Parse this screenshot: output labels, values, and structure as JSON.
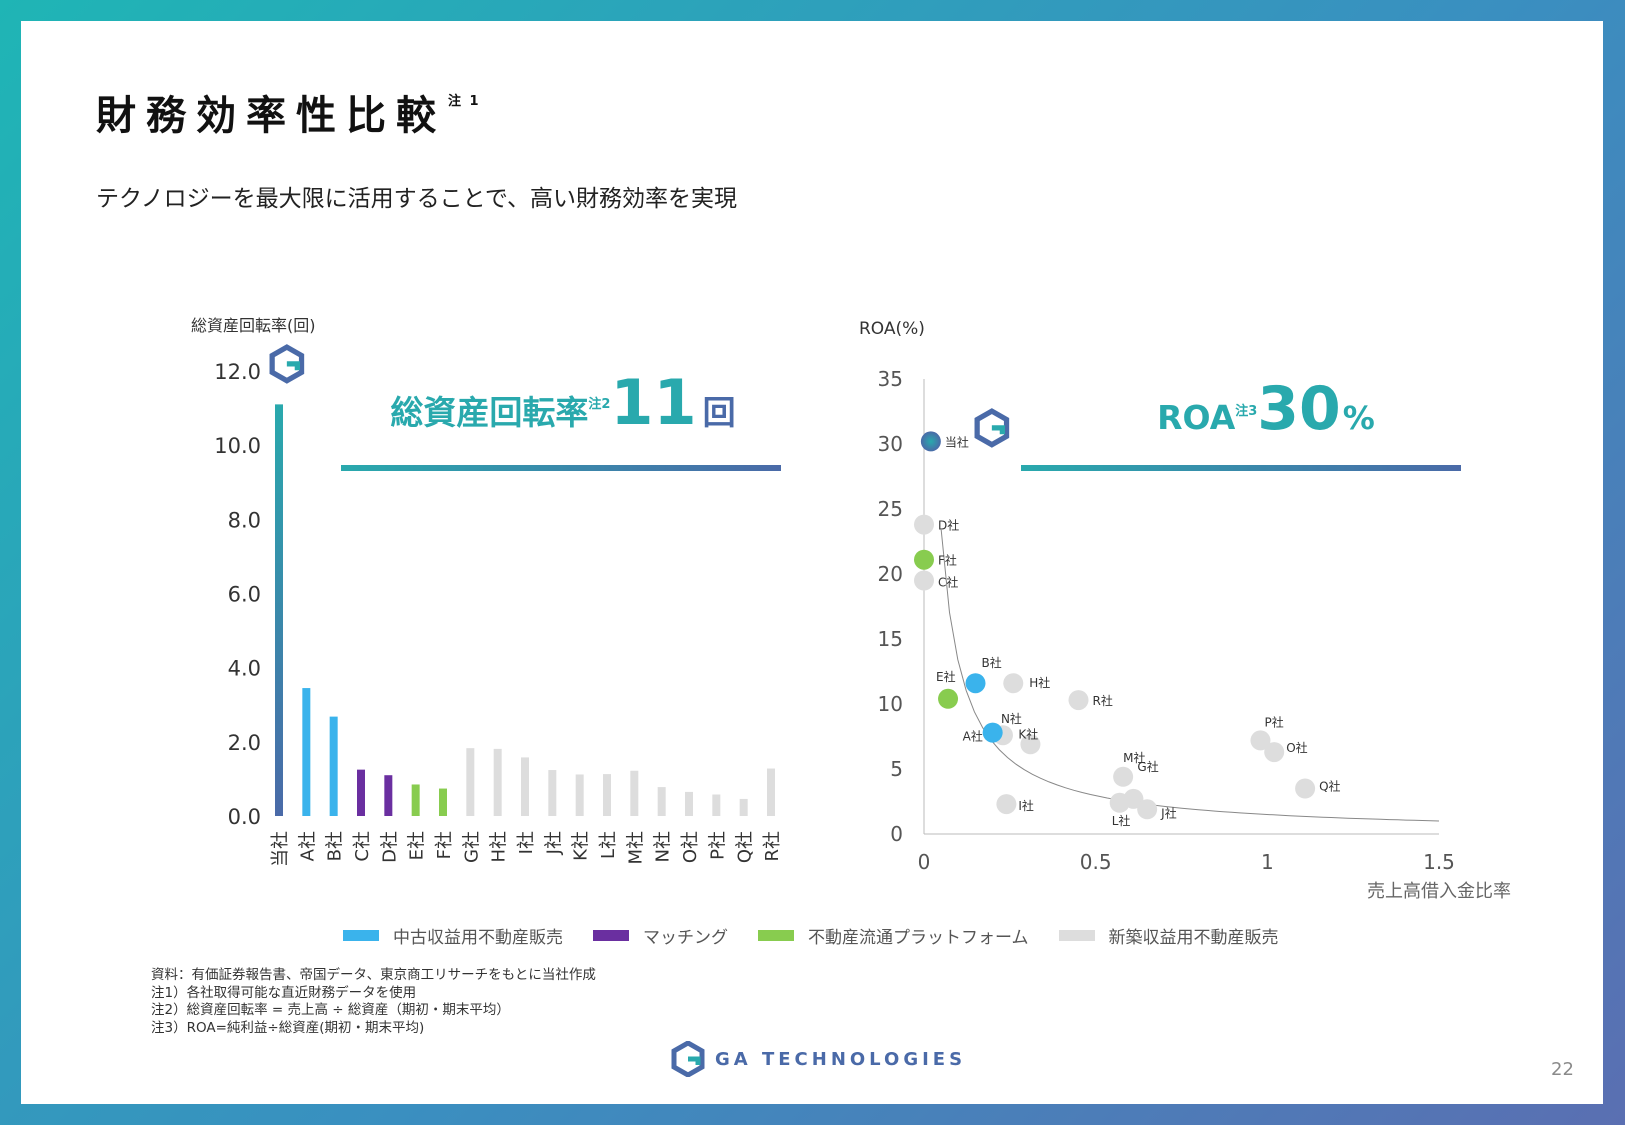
{
  "title": "財務効率性比較",
  "title_note": "注 1",
  "subtitle": "テクノロジーを最大限に活用することで、高い財務効率を実現",
  "colors": {
    "teal": "#29a9ad",
    "navy": "#4a6aa8",
    "light_blue": "#3ab3ec",
    "purple": "#6a2fa0",
    "green": "#88cc4f",
    "gray": "#dddddd"
  },
  "legend": [
    {
      "label": "中古収益用不動産販売",
      "color": "#3ab3ec"
    },
    {
      "label": "マッチング",
      "color": "#6a2fa0"
    },
    {
      "label": "不動産流通プラットフォーム",
      "color": "#88cc4f"
    },
    {
      "label": "新築収益用不動産販売",
      "color": "#dddddd"
    }
  ],
  "chart_data": [
    {
      "type": "bar",
      "ylabel": "総資産回転率(回)",
      "ylim": [
        0,
        12
      ],
      "yticks": [
        "0.0",
        "2.0",
        "4.0",
        "6.0",
        "8.0",
        "10.0",
        "12.0"
      ],
      "categories": [
        "当社",
        "A社",
        "B社",
        "C社",
        "D社",
        "E社",
        "F社",
        "G社",
        "H社",
        "I社",
        "J社",
        "K社",
        "L社",
        "M社",
        "N社",
        "O社",
        "P社",
        "Q社",
        "R社"
      ],
      "values": [
        11.1,
        3.45,
        2.68,
        1.25,
        1.1,
        0.85,
        0.74,
        1.83,
        1.81,
        1.58,
        1.24,
        1.12,
        1.13,
        1.22,
        0.78,
        0.65,
        0.58,
        0.46,
        1.28
      ],
      "groups": [
        "self",
        "used",
        "used",
        "matching",
        "matching",
        "platform",
        "platform",
        "new",
        "new",
        "new",
        "new",
        "new",
        "new",
        "new",
        "new",
        "new",
        "new",
        "new",
        "new"
      ],
      "highlight": {
        "label": "総資産回転率",
        "note": "注2",
        "value": "11",
        "unit": "回"
      }
    },
    {
      "type": "scatter",
      "ylabel": "ROA(%)",
      "xlabel": "売上高借入金比率",
      "xlim": [
        0,
        1.5
      ],
      "ylim": [
        0,
        35
      ],
      "xticks": [
        "0",
        "0.5",
        "1",
        "1.5"
      ],
      "yticks": [
        "0",
        "5",
        "10",
        "15",
        "20",
        "25",
        "30",
        "35"
      ],
      "points": [
        {
          "label": "当社",
          "x": 0.02,
          "y": 30.2,
          "group": "self"
        },
        {
          "label": "D社",
          "x": 0.0,
          "y": 23.8,
          "group": "new"
        },
        {
          "label": "F社",
          "x": 0.0,
          "y": 21.1,
          "group": "platform"
        },
        {
          "label": "C社",
          "x": 0.0,
          "y": 19.5,
          "group": "new"
        },
        {
          "label": "E社",
          "x": 0.07,
          "y": 10.4,
          "group": "platform"
        },
        {
          "label": "B社",
          "x": 0.15,
          "y": 11.6,
          "group": "used"
        },
        {
          "label": "H社",
          "x": 0.26,
          "y": 11.6,
          "group": "new"
        },
        {
          "label": "R社",
          "x": 0.45,
          "y": 10.3,
          "group": "new"
        },
        {
          "label": "N社",
          "x": 0.23,
          "y": 7.6,
          "group": "new"
        },
        {
          "label": "A社",
          "x": 0.2,
          "y": 7.8,
          "group": "used"
        },
        {
          "label": "K社",
          "x": 0.31,
          "y": 6.9,
          "group": "new"
        },
        {
          "label": "M社",
          "x": 0.58,
          "y": 4.4,
          "group": "new"
        },
        {
          "label": "G社",
          "x": 0.61,
          "y": 2.7,
          "group": "new"
        },
        {
          "label": "L社",
          "x": 0.57,
          "y": 2.4,
          "group": "new"
        },
        {
          "label": "J社",
          "x": 0.65,
          "y": 1.9,
          "group": "new"
        },
        {
          "label": "I社",
          "x": 0.24,
          "y": 2.3,
          "group": "new"
        },
        {
          "label": "P社",
          "x": 0.98,
          "y": 7.2,
          "group": "new"
        },
        {
          "label": "O社",
          "x": 1.02,
          "y": 6.3,
          "group": "new"
        },
        {
          "label": "Q社",
          "x": 1.11,
          "y": 3.5,
          "group": "new"
        }
      ],
      "highlight": {
        "label": "ROA",
        "note": "注3",
        "value": "30",
        "unit": "%"
      }
    }
  ],
  "footnotes": [
    "資料：有価証券報告書、帝国データ、東京商工リサーチをもとに当社作成",
    "注1）各社取得可能な直近財務データを使用",
    "注2）総資産回転率 = 売上高 ÷ 総資産（期初・期末平均）",
    "注3）ROA=純利益÷総資産(期初・期末平均)"
  ],
  "brand": "GA TECHNOLOGIES",
  "page_number": "22"
}
